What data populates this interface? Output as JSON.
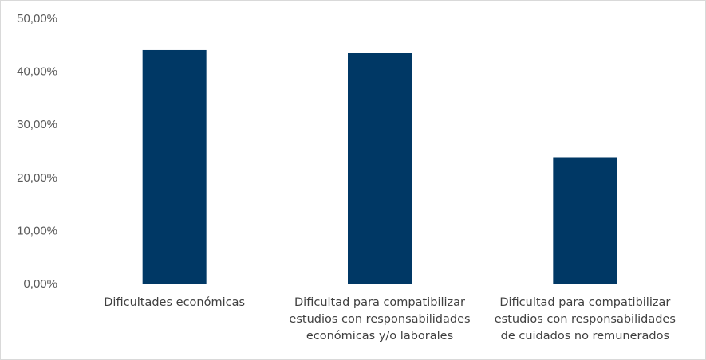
{
  "chart_data": {
    "type": "bar",
    "categories": [
      [
        "Dificultades económicas"
      ],
      [
        "Dificultad para compatibilizar",
        "estudios con responsabilidades",
        "económicas y/o laborales"
      ],
      [
        "Dificultad para compatibilizar",
        "estudios con responsabilidades",
        "de cuidados no remunerados"
      ]
    ],
    "values": [
      44.0,
      43.5,
      23.8
    ],
    "ylim": [
      0,
      50
    ],
    "yticks": [
      "0,00%",
      "10,00%",
      "20,00%",
      "30,00%",
      "40,00%",
      "50,00%"
    ],
    "grid": false,
    "legend": "none",
    "bar_color": "#003865",
    "axis_color": "#d9d9d9"
  }
}
